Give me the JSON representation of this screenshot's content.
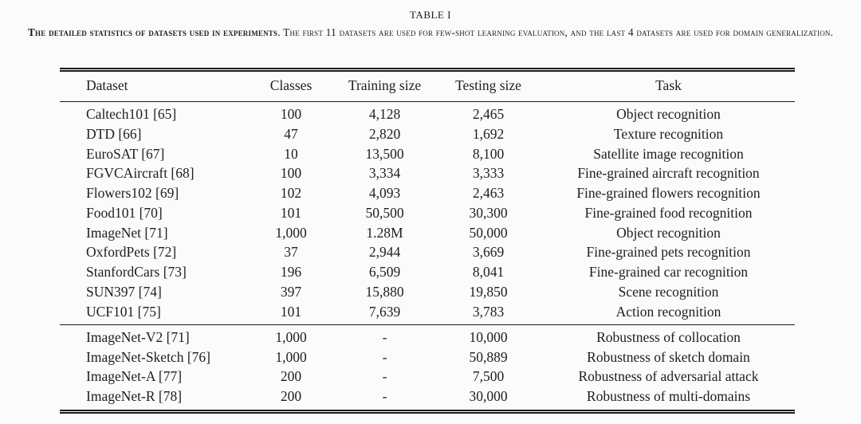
{
  "page": {
    "background": "#fbfbfb",
    "text_color": "#1e1e1e",
    "rule_color": "#1a1a1a"
  },
  "caption": {
    "label": "TABLE I",
    "bold_part": "The detailed statistics of datasets used in experiments",
    "rest_part": ". The first 11 datasets are used for few-shot learning evaluation, and the last 4 datasets are used for domain generalization."
  },
  "table": {
    "columns": [
      "Dataset",
      "Classes",
      "Training size",
      "Testing size",
      "Task"
    ],
    "fewshot_rows": [
      [
        "Caltech101 [65]",
        "100",
        "4,128",
        "2,465",
        "Object recognition"
      ],
      [
        "DTD [66]",
        "47",
        "2,820",
        "1,692",
        "Texture recognition"
      ],
      [
        "EuroSAT [67]",
        "10",
        "13,500",
        "8,100",
        "Satellite image recognition"
      ],
      [
        "FGVCAircraft [68]",
        "100",
        "3,334",
        "3,333",
        "Fine-grained aircraft recognition"
      ],
      [
        "Flowers102 [69]",
        "102",
        "4,093",
        "2,463",
        "Fine-grained flowers recognition"
      ],
      [
        "Food101 [70]",
        "101",
        "50,500",
        "30,300",
        "Fine-grained food recognition"
      ],
      [
        "ImageNet [71]",
        "1,000",
        "1.28M",
        "50,000",
        "Object recognition"
      ],
      [
        "OxfordPets [72]",
        "37",
        "2,944",
        "3,669",
        "Fine-grained pets recognition"
      ],
      [
        "StanfordCars [73]",
        "196",
        "6,509",
        "8,041",
        "Fine-grained car recognition"
      ],
      [
        "SUN397 [74]",
        "397",
        "15,880",
        "19,850",
        "Scene recognition"
      ],
      [
        "UCF101 [75]",
        "101",
        "7,639",
        "3,783",
        "Action recognition"
      ]
    ],
    "domain_rows": [
      [
        "ImageNet-V2 [71]",
        "1,000",
        "-",
        "10,000",
        "Robustness of collocation"
      ],
      [
        "ImageNet-Sketch [76]",
        "1,000",
        "-",
        "50,889",
        "Robustness of sketch domain"
      ],
      [
        "ImageNet-A [77]",
        "200",
        "-",
        "7,500",
        "Robustness of adversarial attack"
      ],
      [
        "ImageNet-R [78]",
        "200",
        "-",
        "30,000",
        "Robustness of multi-domains"
      ]
    ]
  }
}
